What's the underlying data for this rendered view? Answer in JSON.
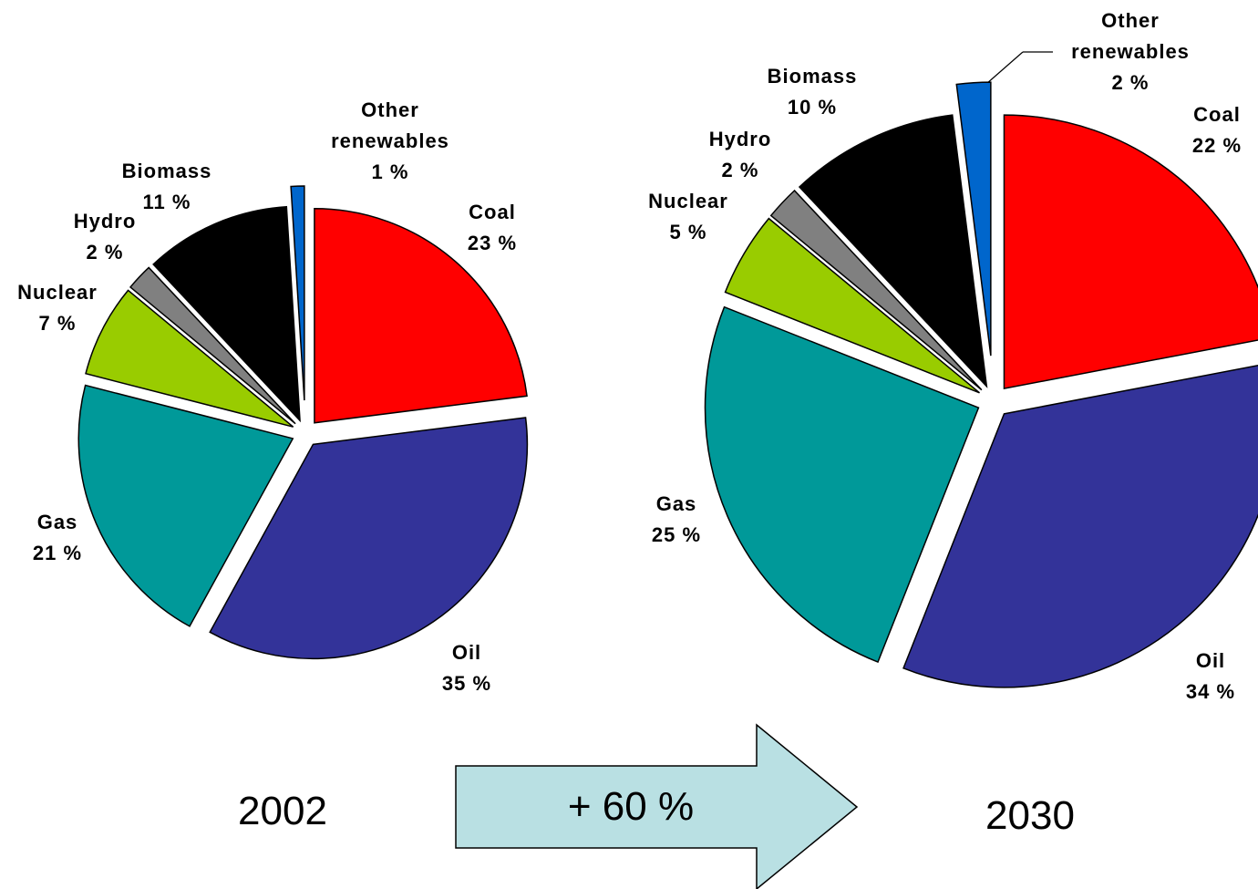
{
  "chart_data": [
    {
      "type": "pie",
      "title": "2002",
      "categories": [
        "Coal",
        "Oil",
        "Gas",
        "Nuclear",
        "Hydro",
        "Biomass",
        "Other renewables"
      ],
      "values": [
        23,
        35,
        21,
        7,
        2,
        11,
        1
      ],
      "value_labels": [
        "23 %",
        "35 %",
        "21 %",
        "7 %",
        "2 %",
        "11 %",
        "1 %"
      ],
      "colors": [
        "#ff0000",
        "#333399",
        "#009999",
        "#99cc00",
        "#808080",
        "#000000",
        "#0066cc"
      ]
    },
    {
      "type": "pie",
      "title": "2030",
      "categories": [
        "Coal",
        "Oil",
        "Gas",
        "Nuclear",
        "Hydro",
        "Biomass",
        "Other renewables"
      ],
      "values": [
        22,
        34,
        25,
        5,
        2,
        10,
        2
      ],
      "value_labels": [
        "22 %",
        "34 %",
        "25 %",
        "5 %",
        "2 %",
        "10 %",
        "2 %"
      ],
      "colors": [
        "#ff0000",
        "#333399",
        "#009999",
        "#99cc00",
        "#808080",
        "#000000",
        "#0066cc"
      ]
    }
  ],
  "arrow": {
    "label": "+ 60 %"
  }
}
